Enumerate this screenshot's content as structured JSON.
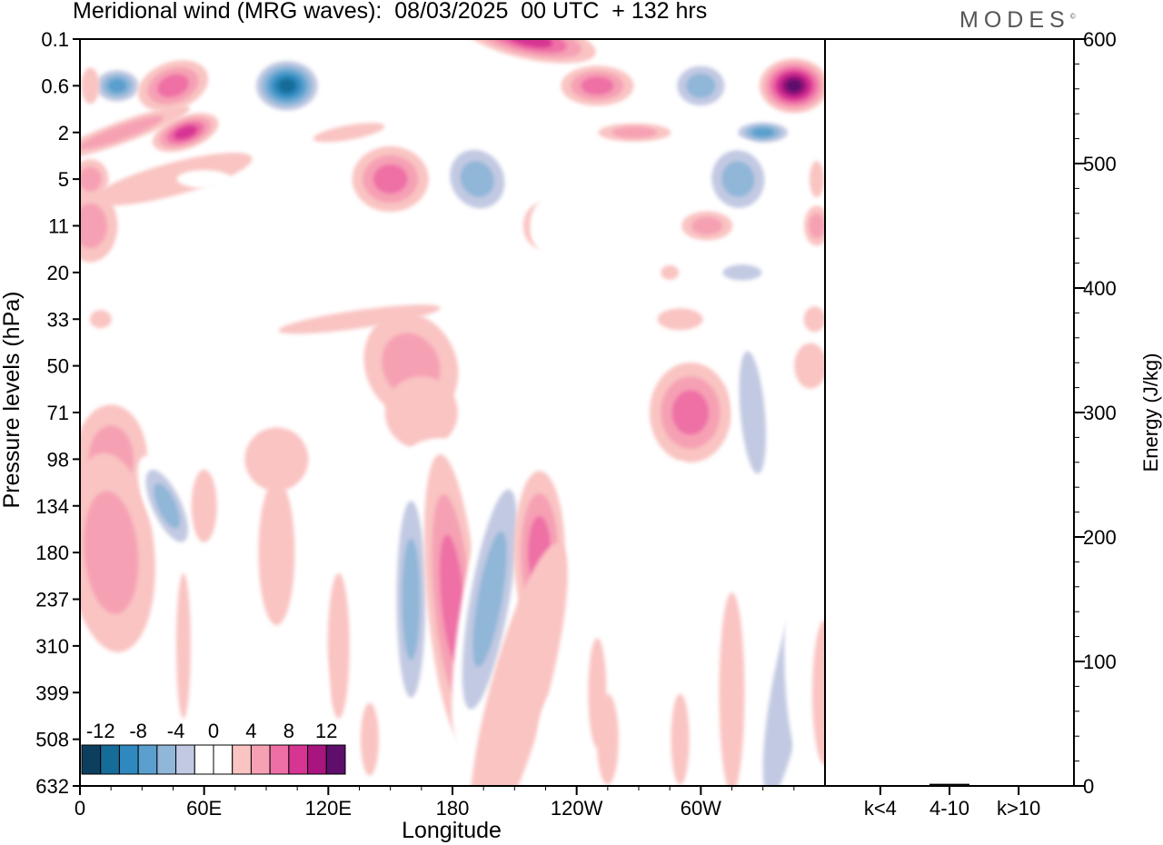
{
  "title": "Meridional wind (MRG waves):  08/03/2025  00 UTC  + 132 hrs",
  "brand": "MODES",
  "brand_mark": "©",
  "chart_data": [
    {
      "type": "heatmap",
      "title": "Meridional wind (MRG waves):  08/03/2025  00 UTC  + 132 hrs",
      "xlabel": "Longitude",
      "ylabel": "Pressure levels (hPa)",
      "x_ticks": [
        "0",
        "60E",
        "120E",
        "180",
        "120W",
        "60W"
      ],
      "y_ticks": [
        "0.1",
        "0.6",
        "2",
        "5",
        "11",
        "20",
        "33",
        "50",
        "71",
        "98",
        "134",
        "180",
        "237",
        "310",
        "399",
        "508",
        "632"
      ],
      "colorbar_levels": [
        -14,
        -12,
        -10,
        -8,
        -6,
        -4,
        -2,
        2,
        4,
        6,
        8,
        10,
        12,
        14
      ],
      "colorbar_tick_labels": [
        "-12",
        "-8",
        "-4",
        "0",
        "4",
        "8",
        "12"
      ],
      "colors": [
        "#0c3f5e",
        "#156c98",
        "#2f88be",
        "#5a9fcd",
        "#90b6d8",
        "#c2c9e2",
        "#ffffff",
        "#ffffff",
        "#f9c4c2",
        "#f6a0b4",
        "#ee6fa5",
        "#d73593",
        "#a8157f",
        "#5e0f6c"
      ],
      "features": [
        {
          "name": "MRG wave, negative",
          "lon": 18,
          "level": "0.6",
          "value": -9
        },
        {
          "name": "MRG wave, negative",
          "lon": 100,
          "level": "0.6",
          "value": -14
        },
        {
          "name": "MRG wave, positive",
          "lon": 45,
          "level": "0.6",
          "value": 8
        },
        {
          "name": "MRG wave, positive",
          "lon": 217,
          "level": "0.1",
          "value": 10
        },
        {
          "name": "MRG wave, positive",
          "lon": 345,
          "level": "0.6",
          "value": 13
        },
        {
          "name": "MRG wave, negative",
          "lon": 300,
          "level": "0.6",
          "value": -8
        },
        {
          "name": "MRG wave, negative",
          "lon": 330,
          "level": "2",
          "value": -10
        },
        {
          "name": "MRG wave, positive",
          "lon": 51,
          "level": "2",
          "value": 10
        },
        {
          "name": "MRG wave, negative",
          "lon": 318,
          "level": "5",
          "value": -8
        },
        {
          "name": "MRG wave, negative",
          "lon": 160,
          "level": "237",
          "value": -8
        },
        {
          "name": "MRG wave, positive",
          "lon": 180,
          "level": "237",
          "value": 8
        },
        {
          "name": "MRG wave, negative",
          "lon": 198,
          "level": "237",
          "value": -8
        },
        {
          "name": "MRG wave, positive",
          "lon": 222,
          "level": "180",
          "value": 8
        },
        {
          "name": "MRG wave, negative",
          "lon": 338,
          "level": "399",
          "value": -6
        }
      ]
    },
    {
      "type": "bar",
      "categories": [
        "k<4",
        "4-10",
        "k>10"
      ],
      "values": [
        0,
        1,
        0
      ],
      "ylabel": "Energy (J/kg)",
      "ylim": [
        0,
        600
      ],
      "y_ticks": [
        "0",
        "100",
        "200",
        "300",
        "400",
        "500",
        "600"
      ]
    }
  ]
}
